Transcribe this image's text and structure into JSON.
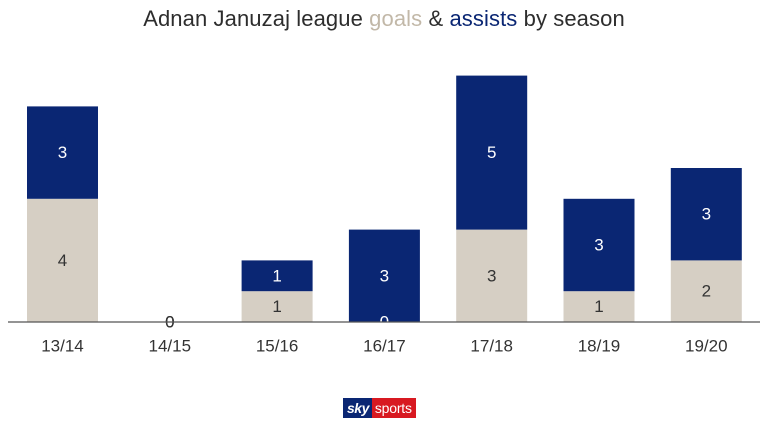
{
  "title": {
    "prefix": "Adnan Januzaj league ",
    "goals_word": "goals",
    "joiner": " & ",
    "assists_word": "assists",
    "suffix": " by season"
  },
  "colors": {
    "goals": "#d6cfc4",
    "assists": "#0a2673",
    "goals_text": "#333333",
    "assists_text": "#ffffff",
    "axis": "#555555",
    "tick_text": "#333333"
  },
  "chart_data": {
    "type": "bar",
    "stacked": true,
    "categories": [
      "13/14",
      "14/15",
      "15/16",
      "16/17",
      "17/18",
      "18/19",
      "19/20"
    ],
    "series": [
      {
        "name": "goals",
        "values": [
          4,
          0,
          1,
          0,
          3,
          1,
          2
        ]
      },
      {
        "name": "assists",
        "values": [
          3,
          0,
          1,
          3,
          5,
          3,
          3
        ]
      }
    ],
    "title": "Adnan Januzaj league goals & assists by season",
    "xlabel": "",
    "ylabel": "",
    "ylim": [
      0,
      8
    ],
    "grid": false,
    "legend": "none"
  },
  "brand": {
    "sky": "sky",
    "sports": "sports"
  }
}
